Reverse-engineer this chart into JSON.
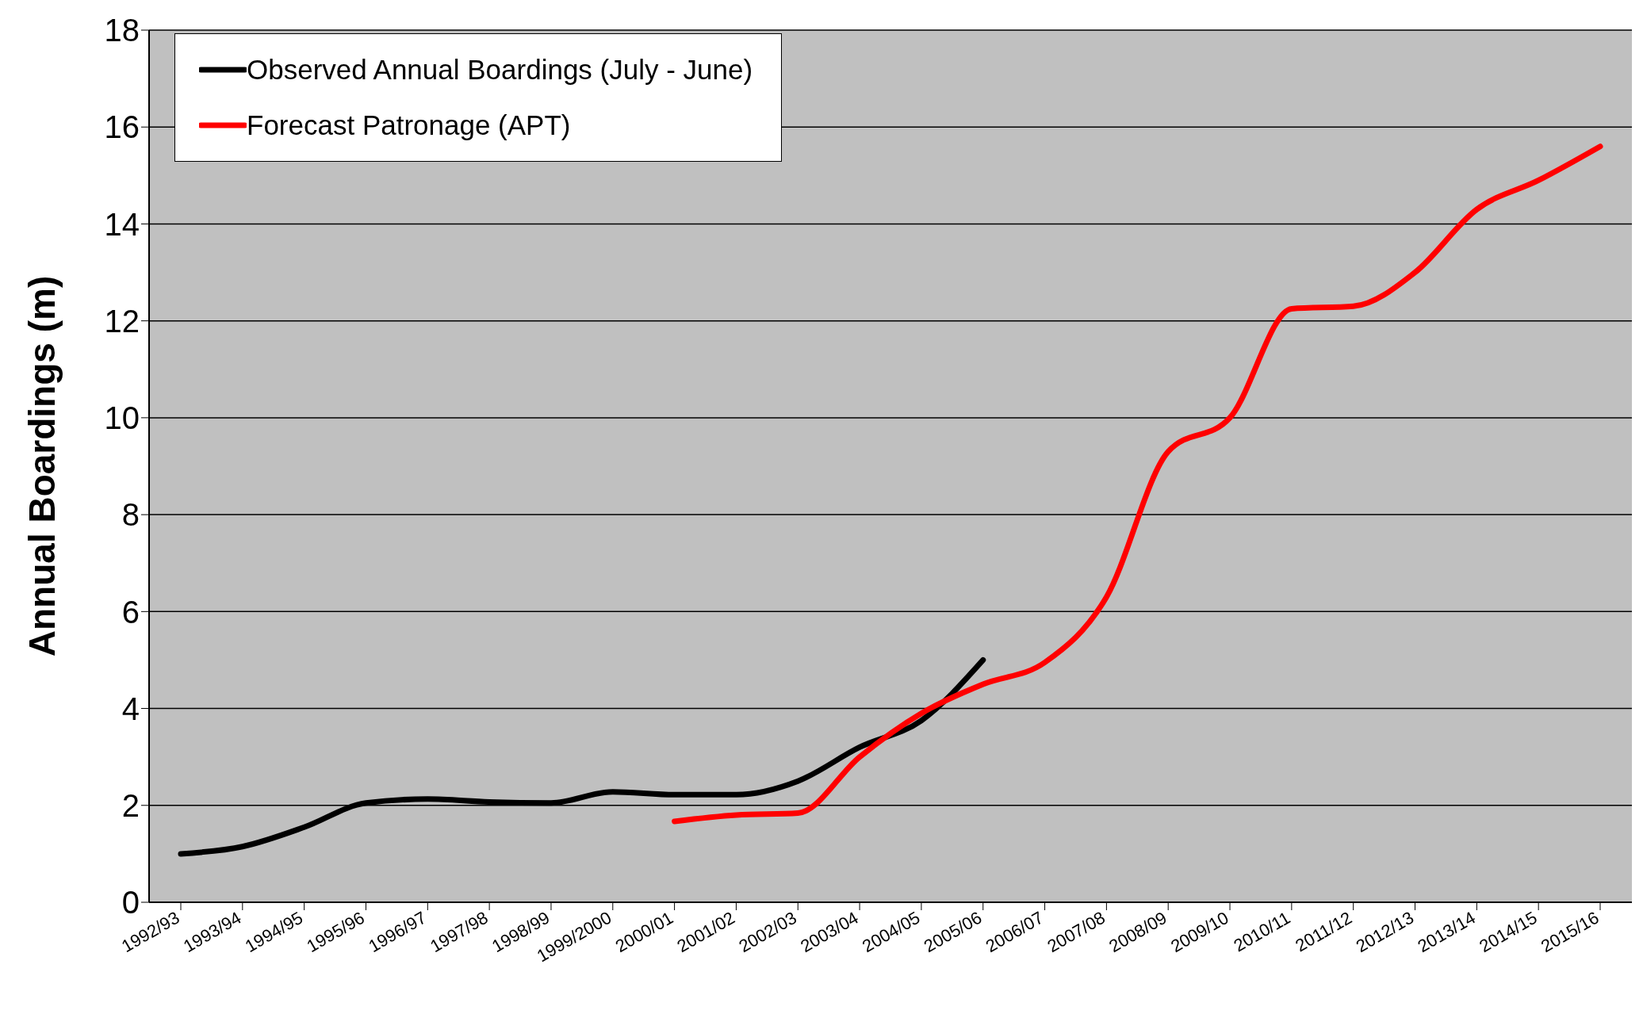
{
  "chart_data": {
    "type": "line",
    "ylabel": "Annual Boardings (m)",
    "categories": [
      "1992/93",
      "1993/94",
      "1994/95",
      "1995/96",
      "1996/97",
      "1997/98",
      "1998/99",
      "1999/2000",
      "2000/01",
      "2001/02",
      "2002/03",
      "2003/04",
      "2004/05",
      "2005/06",
      "2006/07",
      "2007/08",
      "2008/09",
      "2009/10",
      "2010/11",
      "2011/12",
      "2012/13",
      "2013/14",
      "2014/15",
      "2015/16"
    ],
    "series": [
      {
        "name": "Observed Annual Boardings (July - June)",
        "color": "#000000",
        "values": [
          1.0,
          1.15,
          1.55,
          2.05,
          2.13,
          2.07,
          2.05,
          2.28,
          2.22,
          2.22,
          2.5,
          3.2,
          3.75,
          5.0,
          null,
          null,
          null,
          null,
          null,
          null,
          null,
          null,
          null,
          null
        ]
      },
      {
        "name": "Forecast Patronage (APT)",
        "color": "#ff0000",
        "values": [
          null,
          null,
          null,
          null,
          null,
          null,
          null,
          null,
          1.67,
          1.8,
          1.84,
          3.0,
          3.9,
          4.5,
          4.95,
          6.3,
          9.3,
          10.0,
          12.25,
          12.3,
          13.0,
          14.3,
          14.9,
          15.6
        ]
      }
    ],
    "ylim": [
      0,
      18
    ],
    "yticks": [
      0,
      2,
      4,
      6,
      8,
      10,
      12,
      14,
      16,
      18
    ],
    "grid": "y",
    "legend": "top left",
    "marker": "none",
    "line_style": "solid"
  }
}
